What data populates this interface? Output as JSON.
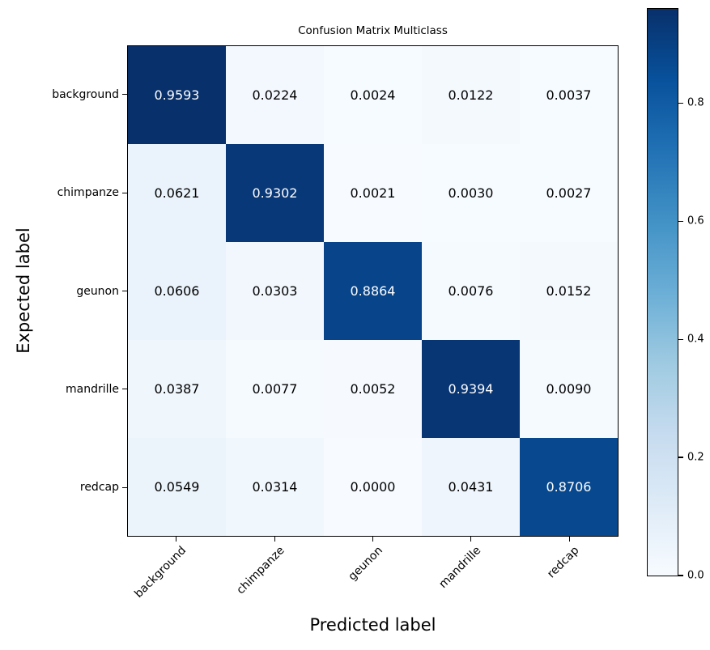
{
  "chart_data": {
    "type": "heatmap",
    "title": "Confusion Matrix Multiclass",
    "xlabel": "Predicted label",
    "ylabel": "Expected label",
    "x_categories": [
      "background",
      "chimpanze",
      "geunon",
      "mandrille",
      "redcap"
    ],
    "y_categories": [
      "background",
      "chimpanze",
      "geunon",
      "mandrille",
      "redcap"
    ],
    "matrix": [
      [
        0.9593,
        0.0224,
        0.0024,
        0.0122,
        0.0037
      ],
      [
        0.0621,
        0.9302,
        0.0021,
        0.003,
        0.0027
      ],
      [
        0.0606,
        0.0303,
        0.8864,
        0.0076,
        0.0152
      ],
      [
        0.0387,
        0.0077,
        0.0052,
        0.9394,
        0.009
      ],
      [
        0.0549,
        0.0314,
        0.0,
        0.0431,
        0.8706
      ]
    ],
    "value_decimals": 4,
    "vmin": 0.0,
    "vmax": 0.9593,
    "colormap": "Blues",
    "colormap_anchors": [
      "#f7fbff",
      "#deebf7",
      "#c6dbef",
      "#9ecae1",
      "#6baed6",
      "#4292c6",
      "#2171b5",
      "#08519c",
      "#08306b"
    ],
    "colorbar_ticks": [
      0.0,
      0.2,
      0.4,
      0.6,
      0.8
    ],
    "colorbar_tick_decimals": 1,
    "legend_position": "right-colorbar",
    "grid": false,
    "cell_text_color_dark_bg": "#ffffff",
    "cell_text_color_light_bg": "#000000"
  }
}
